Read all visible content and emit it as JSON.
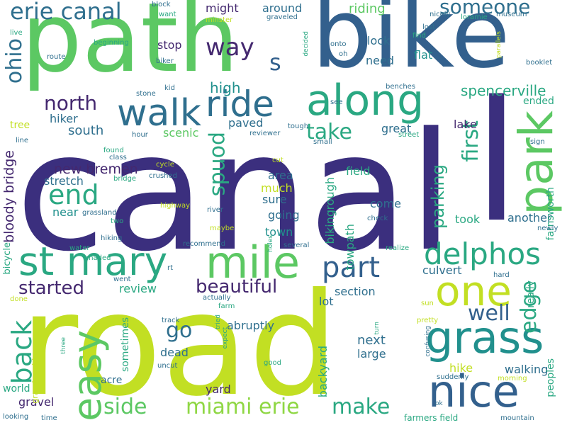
{
  "colors": {
    "background": "#ffffff",
    "dark_indigo": "#3b2f7e",
    "dark_purple": "#44286f",
    "slate_blue": "#33608d",
    "steel_blue": "#2f6f8e",
    "teal": "#21908d",
    "green_teal": "#2aa882",
    "green": "#5cc863",
    "light_green": "#8fd744",
    "yellow_green": "#c2df23",
    "yellow": "#e6e419"
  },
  "words": [
    {
      "text": "canal",
      "color": "#3b2f7e",
      "size": 230
    },
    {
      "text": "road",
      "color": "#c2df23",
      "size": 200
    },
    {
      "text": "path",
      "color": "#5cc863",
      "size": 135
    },
    {
      "text": "bike",
      "color": "#33608d",
      "size": 135
    },
    {
      "text": "l",
      "color": "#3b2f7e",
      "size": 235
    },
    {
      "text": "along",
      "color": "#2aa882",
      "size": 60
    },
    {
      "text": "walk",
      "color": "#2f6f8e",
      "size": 52
    },
    {
      "text": "ride",
      "color": "#2f6f8e",
      "size": 50
    },
    {
      "text": "park",
      "color": "#5cc863",
      "size": 66
    },
    {
      "text": "mile",
      "color": "#5cc863",
      "size": 62
    },
    {
      "text": "st mary",
      "color": "#2aa882",
      "size": 55
    },
    {
      "text": "one",
      "color": "#c2df23",
      "size": 58
    },
    {
      "text": "grass",
      "color": "#21908d",
      "size": 62
    },
    {
      "text": "nice",
      "color": "#33608d",
      "size": 62
    },
    {
      "text": "easy",
      "color": "#5cc863",
      "size": 55
    },
    {
      "text": "delphos",
      "color": "#2aa882",
      "size": 42
    },
    {
      "text": "part",
      "color": "#33608d",
      "size": 40
    },
    {
      "text": "back",
      "color": "#2aa882",
      "size": 38
    },
    {
      "text": "end",
      "color": "#2aa882",
      "size": 38
    },
    {
      "text": "erie canal",
      "color": "#2f6f8e",
      "size": 32
    },
    {
      "text": "way",
      "color": "#44286f",
      "size": 34
    },
    {
      "text": "s",
      "color": "#33608d",
      "size": 32
    },
    {
      "text": "ohio",
      "color": "#2f6f8e",
      "size": 30
    },
    {
      "text": "someone",
      "color": "#2f6f8e",
      "size": 28
    },
    {
      "text": "first",
      "color": "#2aa882",
      "size": 30
    },
    {
      "text": "ponds",
      "color": "#2aa882",
      "size": 30
    },
    {
      "text": "take",
      "color": "#2aa882",
      "size": 30
    },
    {
      "text": "north",
      "color": "#44286f",
      "size": 28
    },
    {
      "text": "beautiful",
      "color": "#44286f",
      "size": 26
    },
    {
      "text": "started",
      "color": "#44286f",
      "size": 26
    },
    {
      "text": "side",
      "color": "#5cc863",
      "size": 30
    },
    {
      "text": "miami erie",
      "color": "#8fd744",
      "size": 30
    },
    {
      "text": "make",
      "color": "#2aa882",
      "size": 30
    },
    {
      "text": "edge",
      "color": "#2aa882",
      "size": 30
    },
    {
      "text": "well",
      "color": "#33608d",
      "size": 30
    },
    {
      "text": "go",
      "color": "#2f6f8e",
      "size": 30
    },
    {
      "text": "parking",
      "color": "#2aa882",
      "size": 24
    },
    {
      "text": "spencerville",
      "color": "#2aa882",
      "size": 20
    },
    {
      "text": "high",
      "color": "#21908d",
      "size": 20
    },
    {
      "text": "new bremen",
      "color": "#44286f",
      "size": 19
    },
    {
      "text": "bloody bridge",
      "color": "#44286f",
      "size": 19
    },
    {
      "text": "riding",
      "color": "#5cc863",
      "size": 18
    },
    {
      "text": "might",
      "color": "#44286f",
      "size": 16
    },
    {
      "text": "around",
      "color": "#2f6f8e",
      "size": 16
    },
    {
      "text": "lock",
      "color": "#2f6f8e",
      "size": 16
    },
    {
      "text": "flat",
      "color": "#21908d",
      "size": 16
    },
    {
      "text": "need",
      "color": "#2f6f8e",
      "size": 16
    },
    {
      "text": "stop",
      "color": "#44286f",
      "size": 16
    },
    {
      "text": "south",
      "color": "#2f6f8e",
      "size": 18
    },
    {
      "text": "hiker",
      "color": "#2f6f8e",
      "size": 16
    },
    {
      "text": "stretch",
      "color": "#2f6f8e",
      "size": 16
    },
    {
      "text": "near",
      "color": "#21908d",
      "size": 16
    },
    {
      "text": "scenic",
      "color": "#5cc863",
      "size": 16
    },
    {
      "text": "paved",
      "color": "#2f6f8e",
      "size": 16
    },
    {
      "text": "area",
      "color": "#2f6f8e",
      "size": 16
    },
    {
      "text": "much",
      "color": "#c2df23",
      "size": 16
    },
    {
      "text": "sure",
      "color": "#2f6f8e",
      "size": 16
    },
    {
      "text": "going",
      "color": "#2f6f8e",
      "size": 16
    },
    {
      "text": "town",
      "color": "#21908d",
      "size": 16
    },
    {
      "text": "field",
      "color": "#2aa882",
      "size": 16
    },
    {
      "text": "biking",
      "color": "#2aa882",
      "size": 16
    },
    {
      "text": "rough",
      "color": "#2aa882",
      "size": 16
    },
    {
      "text": "come",
      "color": "#2f6f8e",
      "size": 16
    },
    {
      "text": "took",
      "color": "#2aa882",
      "size": 16
    },
    {
      "text": "another",
      "color": "#2f6f8e",
      "size": 16
    },
    {
      "text": "towpath",
      "color": "#2aa882",
      "size": 16
    },
    {
      "text": "great",
      "color": "#2f6f8e",
      "size": 16
    },
    {
      "text": "lake",
      "color": "#44286f",
      "size": 16
    },
    {
      "text": "ended",
      "color": "#2aa882",
      "size": 14
    },
    {
      "text": "farnsworth",
      "color": "#2aa882",
      "size": 14
    },
    {
      "text": "culvert",
      "color": "#2f6f8e",
      "size": 16
    },
    {
      "text": "section",
      "color": "#2f6f8e",
      "size": 16
    },
    {
      "text": "review",
      "color": "#2aa882",
      "size": 16
    },
    {
      "text": "lot",
      "color": "#2f6f8e",
      "size": 16
    },
    {
      "text": "abruptly",
      "color": "#2f6f8e",
      "size": 16
    },
    {
      "text": "sometimes",
      "color": "#2aa882",
      "size": 14
    },
    {
      "text": "dead",
      "color": "#2f6f8e",
      "size": 16
    },
    {
      "text": "next",
      "color": "#2f6f8e",
      "size": 18
    },
    {
      "text": "large",
      "color": "#2f6f8e",
      "size": 16
    },
    {
      "text": "backyard",
      "color": "#2aa882",
      "size": 16
    },
    {
      "text": "really",
      "color": "#2aa882",
      "size": 14
    },
    {
      "text": "walking",
      "color": "#2f6f8e",
      "size": 16
    },
    {
      "text": "hike",
      "color": "#c2df23",
      "size": 16
    },
    {
      "text": "peoples",
      "color": "#2aa882",
      "size": 14
    },
    {
      "text": "acre",
      "color": "#2f6f8e",
      "size": 14
    },
    {
      "text": "yard",
      "color": "#44286f",
      "size": 16
    },
    {
      "text": "world",
      "color": "#2aa882",
      "size": 14
    },
    {
      "text": "gravel",
      "color": "#44286f",
      "size": 16
    },
    {
      "text": "bicycle",
      "color": "#2aa882",
      "size": 13
    },
    {
      "text": "grand rapids",
      "color": "#c2df23",
      "size": 11
    },
    {
      "text": "tree",
      "color": "#c2df23",
      "size": 14
    },
    {
      "text": "line",
      "color": "#2f6f8e",
      "size": 10
    },
    {
      "text": "hour",
      "color": "#2f6f8e",
      "size": 10
    },
    {
      "text": "reviewer",
      "color": "#2f6f8e",
      "size": 10
    },
    {
      "text": "tough",
      "color": "#2f6f8e",
      "size": 10
    },
    {
      "text": "small",
      "color": "#2f6f8e",
      "size": 10
    },
    {
      "text": "street",
      "color": "#2aa882",
      "size": 10
    },
    {
      "text": "sign",
      "color": "#2f6f8e",
      "size": 10
    },
    {
      "text": "class",
      "color": "#2f6f8e",
      "size": 10
    },
    {
      "text": "found",
      "color": "#2aa882",
      "size": 10
    },
    {
      "text": "cycle",
      "color": "#c2df23",
      "size": 10
    },
    {
      "text": "crushed",
      "color": "#2f6f8e",
      "size": 10
    },
    {
      "text": "bridge",
      "color": "#2aa882",
      "size": 10
    },
    {
      "text": "cut",
      "color": "#c2df23",
      "size": 10
    },
    {
      "text": "grassland",
      "color": "#2f6f8e",
      "size": 10
    },
    {
      "text": "two",
      "color": "#2aa882",
      "size": 10
    },
    {
      "text": "highway",
      "color": "#c2df23",
      "size": 10
    },
    {
      "text": "river",
      "color": "#2f6f8e",
      "size": 10
    },
    {
      "text": "maybe",
      "color": "#c2df23",
      "size": 10
    },
    {
      "text": "holes",
      "color": "#2aa882",
      "size": 9
    },
    {
      "text": "check",
      "color": "#2f6f8e",
      "size": 10
    },
    {
      "text": "newly",
      "color": "#2f6f8e",
      "size": 10
    },
    {
      "text": "hiking",
      "color": "#2f6f8e",
      "size": 10
    },
    {
      "text": "recommend",
      "color": "#2f6f8e",
      "size": 10
    },
    {
      "text": "several",
      "color": "#2f6f8e",
      "size": 10
    },
    {
      "text": "realize",
      "color": "#2aa882",
      "size": 10
    },
    {
      "text": "water",
      "color": "#2aa882",
      "size": 10
    },
    {
      "text": "shaded",
      "color": "#2aa882",
      "size": 10
    },
    {
      "text": "rt",
      "color": "#2f6f8e",
      "size": 10
    },
    {
      "text": "hard",
      "color": "#2f6f8e",
      "size": 10
    },
    {
      "text": "went",
      "color": "#2f6f8e",
      "size": 10
    },
    {
      "text": "actually",
      "color": "#2f6f8e",
      "size": 10
    },
    {
      "text": "done",
      "color": "#c2df23",
      "size": 10
    },
    {
      "text": "track",
      "color": "#2f6f8e",
      "size": 10
    },
    {
      "text": "farm",
      "color": "#2aa882",
      "size": 10
    },
    {
      "text": "tried",
      "color": "#2aa882",
      "size": 9
    },
    {
      "text": "turn",
      "color": "#2aa882",
      "size": 9
    },
    {
      "text": "sun",
      "color": "#c2df23",
      "size": 10
    },
    {
      "text": "pretty",
      "color": "#c2df23",
      "size": 10
    },
    {
      "text": "confusing",
      "color": "#2f6f8e",
      "size": 9
    },
    {
      "text": "uncut",
      "color": "#2f6f8e",
      "size": 10
    },
    {
      "text": "expect",
      "color": "#2aa882",
      "size": 9
    },
    {
      "text": "good",
      "color": "#2aa882",
      "size": 10
    },
    {
      "text": "three",
      "color": "#2aa882",
      "size": 9
    },
    {
      "text": "adjacent",
      "color": "#c2df23",
      "size": 10
    },
    {
      "text": "suddenly",
      "color": "#2f6f8e",
      "size": 10
    },
    {
      "text": "morning",
      "color": "#c2df23",
      "size": 10
    },
    {
      "text": "looking",
      "color": "#2f6f8e",
      "size": 10
    },
    {
      "text": "time",
      "color": "#2f6f8e",
      "size": 10
    },
    {
      "text": "farmers field",
      "color": "#2aa882",
      "size": 12
    },
    {
      "text": "ok",
      "color": "#2f6f8e",
      "size": 9
    },
    {
      "text": "mountain",
      "color": "#2f6f8e",
      "size": 10
    },
    {
      "text": "block",
      "color": "#2f6f8e",
      "size": 10
    },
    {
      "text": "want",
      "color": "#2aa882",
      "size": 10
    },
    {
      "text": "minster",
      "color": "#c2df23",
      "size": 10
    },
    {
      "text": "graveled",
      "color": "#2f6f8e",
      "size": 10
    },
    {
      "text": "decided",
      "color": "#2aa882",
      "size": 9
    },
    {
      "text": "onto",
      "color": "#2f6f8e",
      "size": 10
    },
    {
      "text": "oh",
      "color": "#2f6f8e",
      "size": 10
    },
    {
      "text": "lost",
      "color": "#2f6f8e",
      "size": 10
    },
    {
      "text": "find",
      "color": "#2aa882",
      "size": 10
    },
    {
      "text": "nicely",
      "color": "#2f6f8e",
      "size": 10
    },
    {
      "text": "museum",
      "color": "#2f6f8e",
      "size": 10
    },
    {
      "text": "loramie",
      "color": "#2aa882",
      "size": 10
    },
    {
      "text": "parallels",
      "color": "#c2df23",
      "size": 9
    },
    {
      "text": "booklet",
      "color": "#2f6f8e",
      "size": 10
    },
    {
      "text": "live",
      "color": "#2aa882",
      "size": 10
    },
    {
      "text": "route",
      "color": "#2f6f8e",
      "size": 10
    },
    {
      "text": "beginning",
      "color": "#2aa882",
      "size": 10
    },
    {
      "text": "biker",
      "color": "#2f6f8e",
      "size": 10
    },
    {
      "text": "kid",
      "color": "#2f6f8e",
      "size": 10
    },
    {
      "text": "stone",
      "color": "#2f6f8e",
      "size": 10
    },
    {
      "text": "see",
      "color": "#2f6f8e",
      "size": 10
    },
    {
      "text": "benches",
      "color": "#2f6f8e",
      "size": 10
    }
  ]
}
